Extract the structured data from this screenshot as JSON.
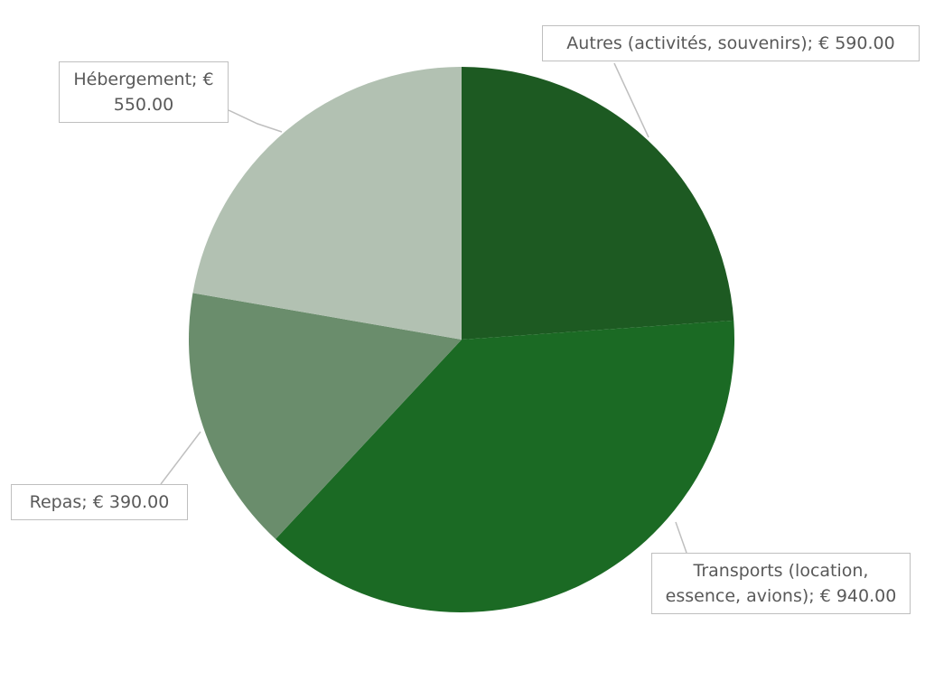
{
  "chart_data": {
    "type": "pie",
    "categories": [
      "Autres (activités, souvenirs)",
      "Transports (location, essence, avions)",
      "Repas",
      "Hébergement"
    ],
    "values": [
      590,
      940,
      390,
      550
    ],
    "value_labels": [
      "€ 590.00",
      "€ 940.00",
      "€ 390.00",
      "€ 550.00"
    ],
    "label_separator": ";",
    "colors": [
      "#1d5a22",
      "#1b6a24",
      "#6a8d6c",
      "#b2c1b2"
    ]
  }
}
